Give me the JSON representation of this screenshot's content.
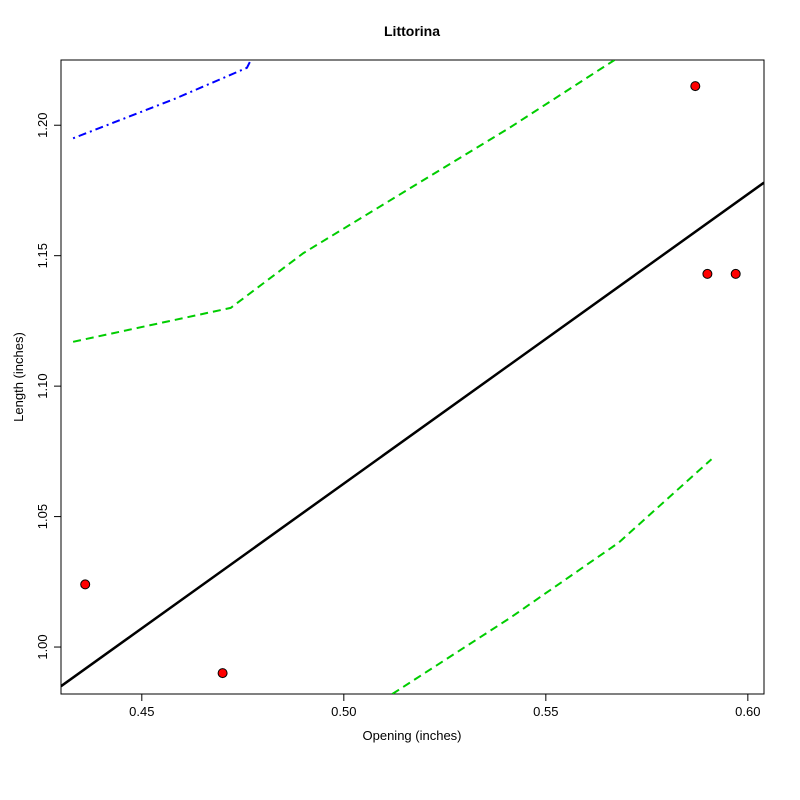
{
  "chart_data": {
    "type": "scatter",
    "title": "Littorina",
    "xlabel": "Opening (inches)",
    "ylabel": "Length (inches)",
    "xlim": [
      0.43,
      0.604
    ],
    "ylim": [
      0.982,
      1.225
    ],
    "x_ticks": [
      "0.45",
      "0.50",
      "0.55",
      "0.60"
    ],
    "y_ticks": [
      "1.00",
      "1.05",
      "1.10",
      "1.15",
      "1.20"
    ],
    "points": [
      {
        "x": 0.436,
        "y": 1.024
      },
      {
        "x": 0.47,
        "y": 0.99
      },
      {
        "x": 0.587,
        "y": 1.215
      },
      {
        "x": 0.59,
        "y": 1.143
      },
      {
        "x": 0.597,
        "y": 1.143
      }
    ],
    "lines": [
      {
        "style": "solid",
        "color": "#000000",
        "points": [
          [
            0.43,
            0.985
          ],
          [
            0.604,
            1.178
          ]
        ]
      },
      {
        "style": "dashed",
        "color": "#00cd00",
        "points": [
          [
            0.433,
            1.117
          ],
          [
            0.472,
            1.13
          ],
          [
            0.49,
            1.151
          ],
          [
            0.541,
            1.199
          ],
          [
            0.567,
            1.225
          ]
        ]
      },
      {
        "style": "dashed",
        "color": "#00cd00",
        "points": [
          [
            0.512,
            0.982
          ],
          [
            0.541,
            1.011
          ],
          [
            0.568,
            1.04
          ],
          [
            0.591,
            1.072
          ]
        ]
      },
      {
        "style": "dotdash",
        "color": "#0000ff",
        "points": [
          [
            0.433,
            1.195
          ],
          [
            0.458,
            1.21
          ],
          [
            0.476,
            1.222
          ],
          [
            0.477,
            1.225
          ]
        ]
      }
    ],
    "point_color": "#ff0000",
    "grid": false,
    "legend": "none"
  }
}
